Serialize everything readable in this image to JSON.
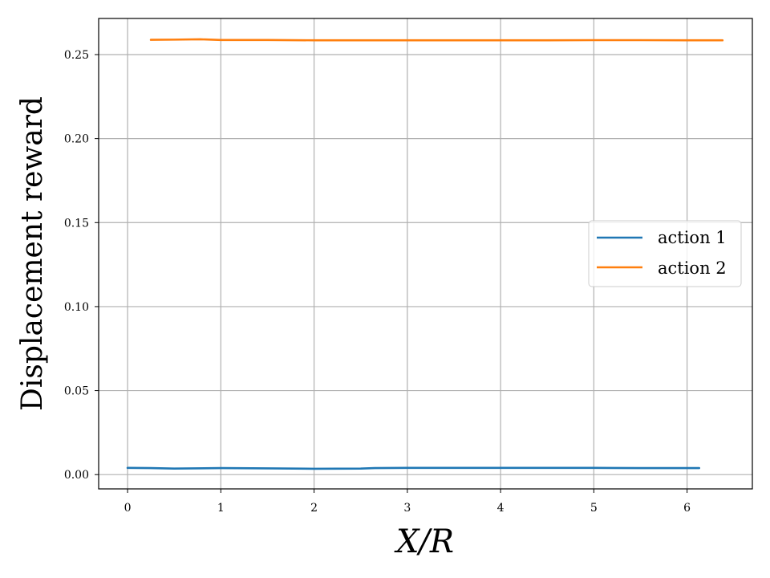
{
  "chart_data": {
    "type": "line",
    "xlabel": "X/R",
    "ylabel": "Displacement reward",
    "xlim": [
      -0.31,
      6.7
    ],
    "ylim": [
      -0.0085,
      0.2715
    ],
    "x_ticks": [
      0,
      1,
      2,
      3,
      4,
      5,
      6
    ],
    "x_tick_labels": [
      "0",
      "1",
      "2",
      "3",
      "4",
      "5",
      "6"
    ],
    "y_ticks": [
      0.0,
      0.05,
      0.1,
      0.15,
      0.2,
      0.25
    ],
    "y_tick_labels": [
      "0.00",
      "0.05",
      "0.10",
      "0.15",
      "0.20",
      "0.25"
    ],
    "grid": true,
    "legend_position": "center-right",
    "series": [
      {
        "name": "action 1",
        "color": "#1f77b4",
        "x": [
          0.0,
          0.25,
          0.5,
          1.0,
          1.5,
          2.0,
          2.5,
          2.65,
          3.0,
          3.5,
          4.0,
          4.5,
          5.0,
          5.5,
          6.13
        ],
        "y": [
          0.004,
          0.0039,
          0.0036,
          0.0039,
          0.0037,
          0.0035,
          0.0036,
          0.0039,
          0.004,
          0.004,
          0.004,
          0.004,
          0.004,
          0.0039,
          0.0039
        ]
      },
      {
        "name": "action 2",
        "color": "#ff7f0e",
        "x": [
          0.25,
          0.5,
          0.78,
          1.0,
          1.5,
          2.0,
          2.3,
          3.0,
          3.5,
          4.0,
          4.5,
          5.0,
          5.5,
          6.0,
          6.38
        ],
        "y": [
          0.2588,
          0.2589,
          0.2591,
          0.2587,
          0.2587,
          0.2585,
          0.2585,
          0.2585,
          0.2585,
          0.2585,
          0.2585,
          0.2586,
          0.2586,
          0.2585,
          0.2585
        ]
      }
    ]
  }
}
